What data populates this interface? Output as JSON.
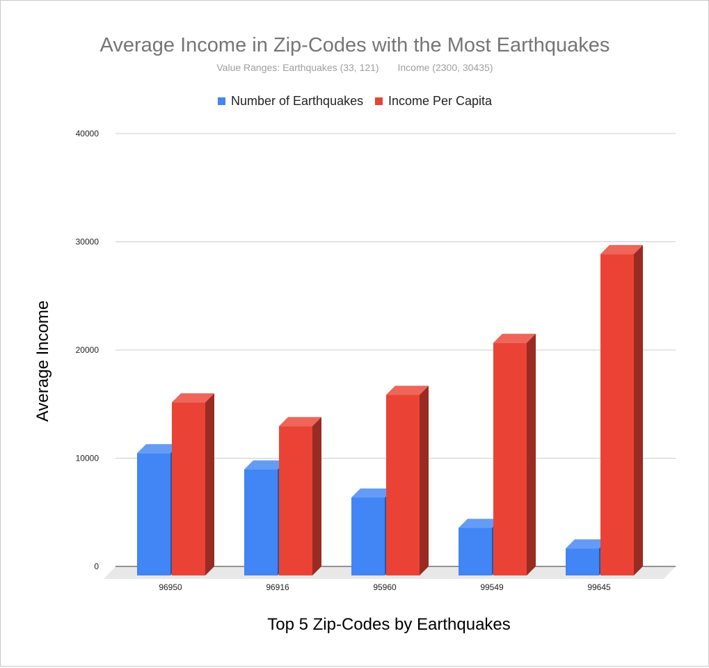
{
  "chart_data": {
    "type": "bar",
    "title": "Average Income in Zip-Codes with the Most Earthquakes",
    "subtitle_left": "Value Ranges: Earthquakes (33, 121)",
    "subtitle_right": "Income (2300, 30435)",
    "xlabel": "Top 5 Zip-Codes by Earthquakes",
    "ylabel": "Average Income",
    "categories": [
      "96950",
      "96916",
      "95960",
      "99549",
      "99645"
    ],
    "series": [
      {
        "name": "Number of Earthquakes",
        "color": "#4285f4",
        "values": [
          11300,
          9800,
          7200,
          4400,
          2500
        ]
      },
      {
        "name": "Income Per Capita",
        "color": "#ea4335",
        "values": [
          16000,
          13800,
          16700,
          21500,
          29700
        ]
      }
    ],
    "ylim": [
      0,
      40000
    ],
    "yticks": [
      "0",
      "10000",
      "20000",
      "30000",
      "40000"
    ],
    "grid": true,
    "legend_position": "top",
    "style": "3d-bar"
  }
}
